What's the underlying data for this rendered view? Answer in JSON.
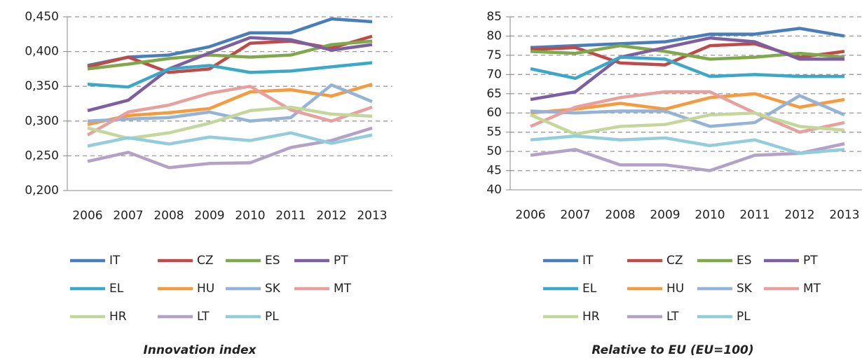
{
  "chart_data": [
    {
      "type": "line",
      "caption": "Innovation index",
      "categories": [
        "2006",
        "2007",
        "2008",
        "2009",
        "2010",
        "2011",
        "2012",
        "2013"
      ],
      "ylim": [
        0.2,
        0.45
      ],
      "yticks": [
        {
          "value": 0.2,
          "label": "0,200"
        },
        {
          "value": 0.25,
          "label": "0,250"
        },
        {
          "value": 0.3,
          "label": "0,300"
        },
        {
          "value": 0.35,
          "label": "0,350"
        },
        {
          "value": 0.4,
          "label": "0,400"
        },
        {
          "value": 0.45,
          "label": "0,450"
        }
      ],
      "grid": true,
      "legend": "bottom",
      "series": [
        {
          "name": "IT",
          "color": "#4a7ebb",
          "values": [
            0.38,
            0.392,
            0.395,
            0.407,
            0.427,
            0.427,
            0.447,
            0.443
          ]
        },
        {
          "name": "CZ",
          "color": "#be4b48",
          "values": [
            0.378,
            0.392,
            0.37,
            0.375,
            0.412,
            0.415,
            0.405,
            0.422
          ]
        },
        {
          "name": "ES",
          "color": "#7fa84b",
          "values": [
            0.375,
            0.382,
            0.39,
            0.395,
            0.392,
            0.395,
            0.41,
            0.415
          ]
        },
        {
          "name": "PT",
          "color": "#7d5fa0",
          "values": [
            0.315,
            0.33,
            0.375,
            0.398,
            0.42,
            0.417,
            0.402,
            0.41
          ]
        },
        {
          "name": "EL",
          "color": "#3ba8c5",
          "values": [
            0.353,
            0.349,
            0.375,
            0.38,
            0.37,
            0.372,
            0.378,
            0.384
          ]
        },
        {
          "name": "HU",
          "color": "#f59a3d",
          "values": [
            0.295,
            0.308,
            0.312,
            0.318,
            0.342,
            0.345,
            0.336,
            0.353
          ]
        },
        {
          "name": "SK",
          "color": "#95b3d7",
          "values": [
            0.3,
            0.303,
            0.305,
            0.313,
            0.3,
            0.305,
            0.352,
            0.328
          ]
        },
        {
          "name": "MT",
          "color": "#e6a09e",
          "values": [
            0.28,
            0.313,
            0.323,
            0.34,
            0.35,
            0.316,
            0.3,
            0.32
          ]
        },
        {
          "name": "HR",
          "color": "#c4d79b",
          "values": [
            0.29,
            0.275,
            0.283,
            0.297,
            0.315,
            0.32,
            0.31,
            0.307
          ]
        },
        {
          "name": "LT",
          "color": "#b3a2c7",
          "values": [
            0.242,
            0.255,
            0.233,
            0.239,
            0.24,
            0.262,
            0.272,
            0.29
          ]
        },
        {
          "name": "PL",
          "color": "#93cddd",
          "values": [
            0.264,
            0.276,
            0.267,
            0.277,
            0.272,
            0.283,
            0.268,
            0.28
          ]
        }
      ]
    },
    {
      "type": "line",
      "caption": "Relative to EU (EU=100)",
      "categories": [
        "2006",
        "2007",
        "2008",
        "2009",
        "2010",
        "2011",
        "2012",
        "2013"
      ],
      "ylim": [
        40,
        85
      ],
      "yticks": [
        40,
        45,
        50,
        55,
        60,
        65,
        70,
        75,
        80,
        85
      ],
      "grid": true,
      "legend": "bottom",
      "series": [
        {
          "name": "IT",
          "color": "#4a7ebb",
          "values": [
            77,
            77.5,
            78,
            78.5,
            80.5,
            80.5,
            82,
            80
          ]
        },
        {
          "name": "CZ",
          "color": "#be4b48",
          "values": [
            76.5,
            77,
            73,
            72.5,
            77.5,
            78,
            74.5,
            76
          ]
        },
        {
          "name": "ES",
          "color": "#7fa84b",
          "values": [
            76,
            75.5,
            77.5,
            76,
            74,
            74.5,
            75.5,
            74.5
          ]
        },
        {
          "name": "PT",
          "color": "#7d5fa0",
          "values": [
            63.5,
            65.5,
            74.5,
            77,
            79.5,
            78.5,
            74,
            74
          ]
        },
        {
          "name": "EL",
          "color": "#3ba8c5",
          "values": [
            71.5,
            69,
            74.5,
            74,
            69.5,
            70,
            69.5,
            69.5
          ]
        },
        {
          "name": "HU",
          "color": "#f59a3d",
          "values": [
            60,
            61,
            62.5,
            61,
            64,
            65,
            61.5,
            63.5
          ]
        },
        {
          "name": "SK",
          "color": "#95b3d7",
          "values": [
            60.5,
            60,
            60.5,
            60.5,
            56.5,
            57.5,
            64.5,
            59.5
          ]
        },
        {
          "name": "MT",
          "color": "#e6a09e",
          "values": [
            56.5,
            61.5,
            64,
            65.5,
            65.5,
            60,
            55,
            57.5
          ]
        },
        {
          "name": "HR",
          "color": "#c4d79b",
          "values": [
            59.5,
            54.5,
            56.5,
            57,
            59.5,
            60,
            56.5,
            55.5
          ]
        },
        {
          "name": "LT",
          "color": "#b3a2c7",
          "values": [
            49,
            50.5,
            46.5,
            46.5,
            45,
            49,
            49.5,
            52
          ]
        },
        {
          "name": "PL",
          "color": "#93cddd",
          "values": [
            53,
            54,
            53,
            53.5,
            51.5,
            53,
            49.5,
            50.5
          ]
        }
      ]
    }
  ]
}
